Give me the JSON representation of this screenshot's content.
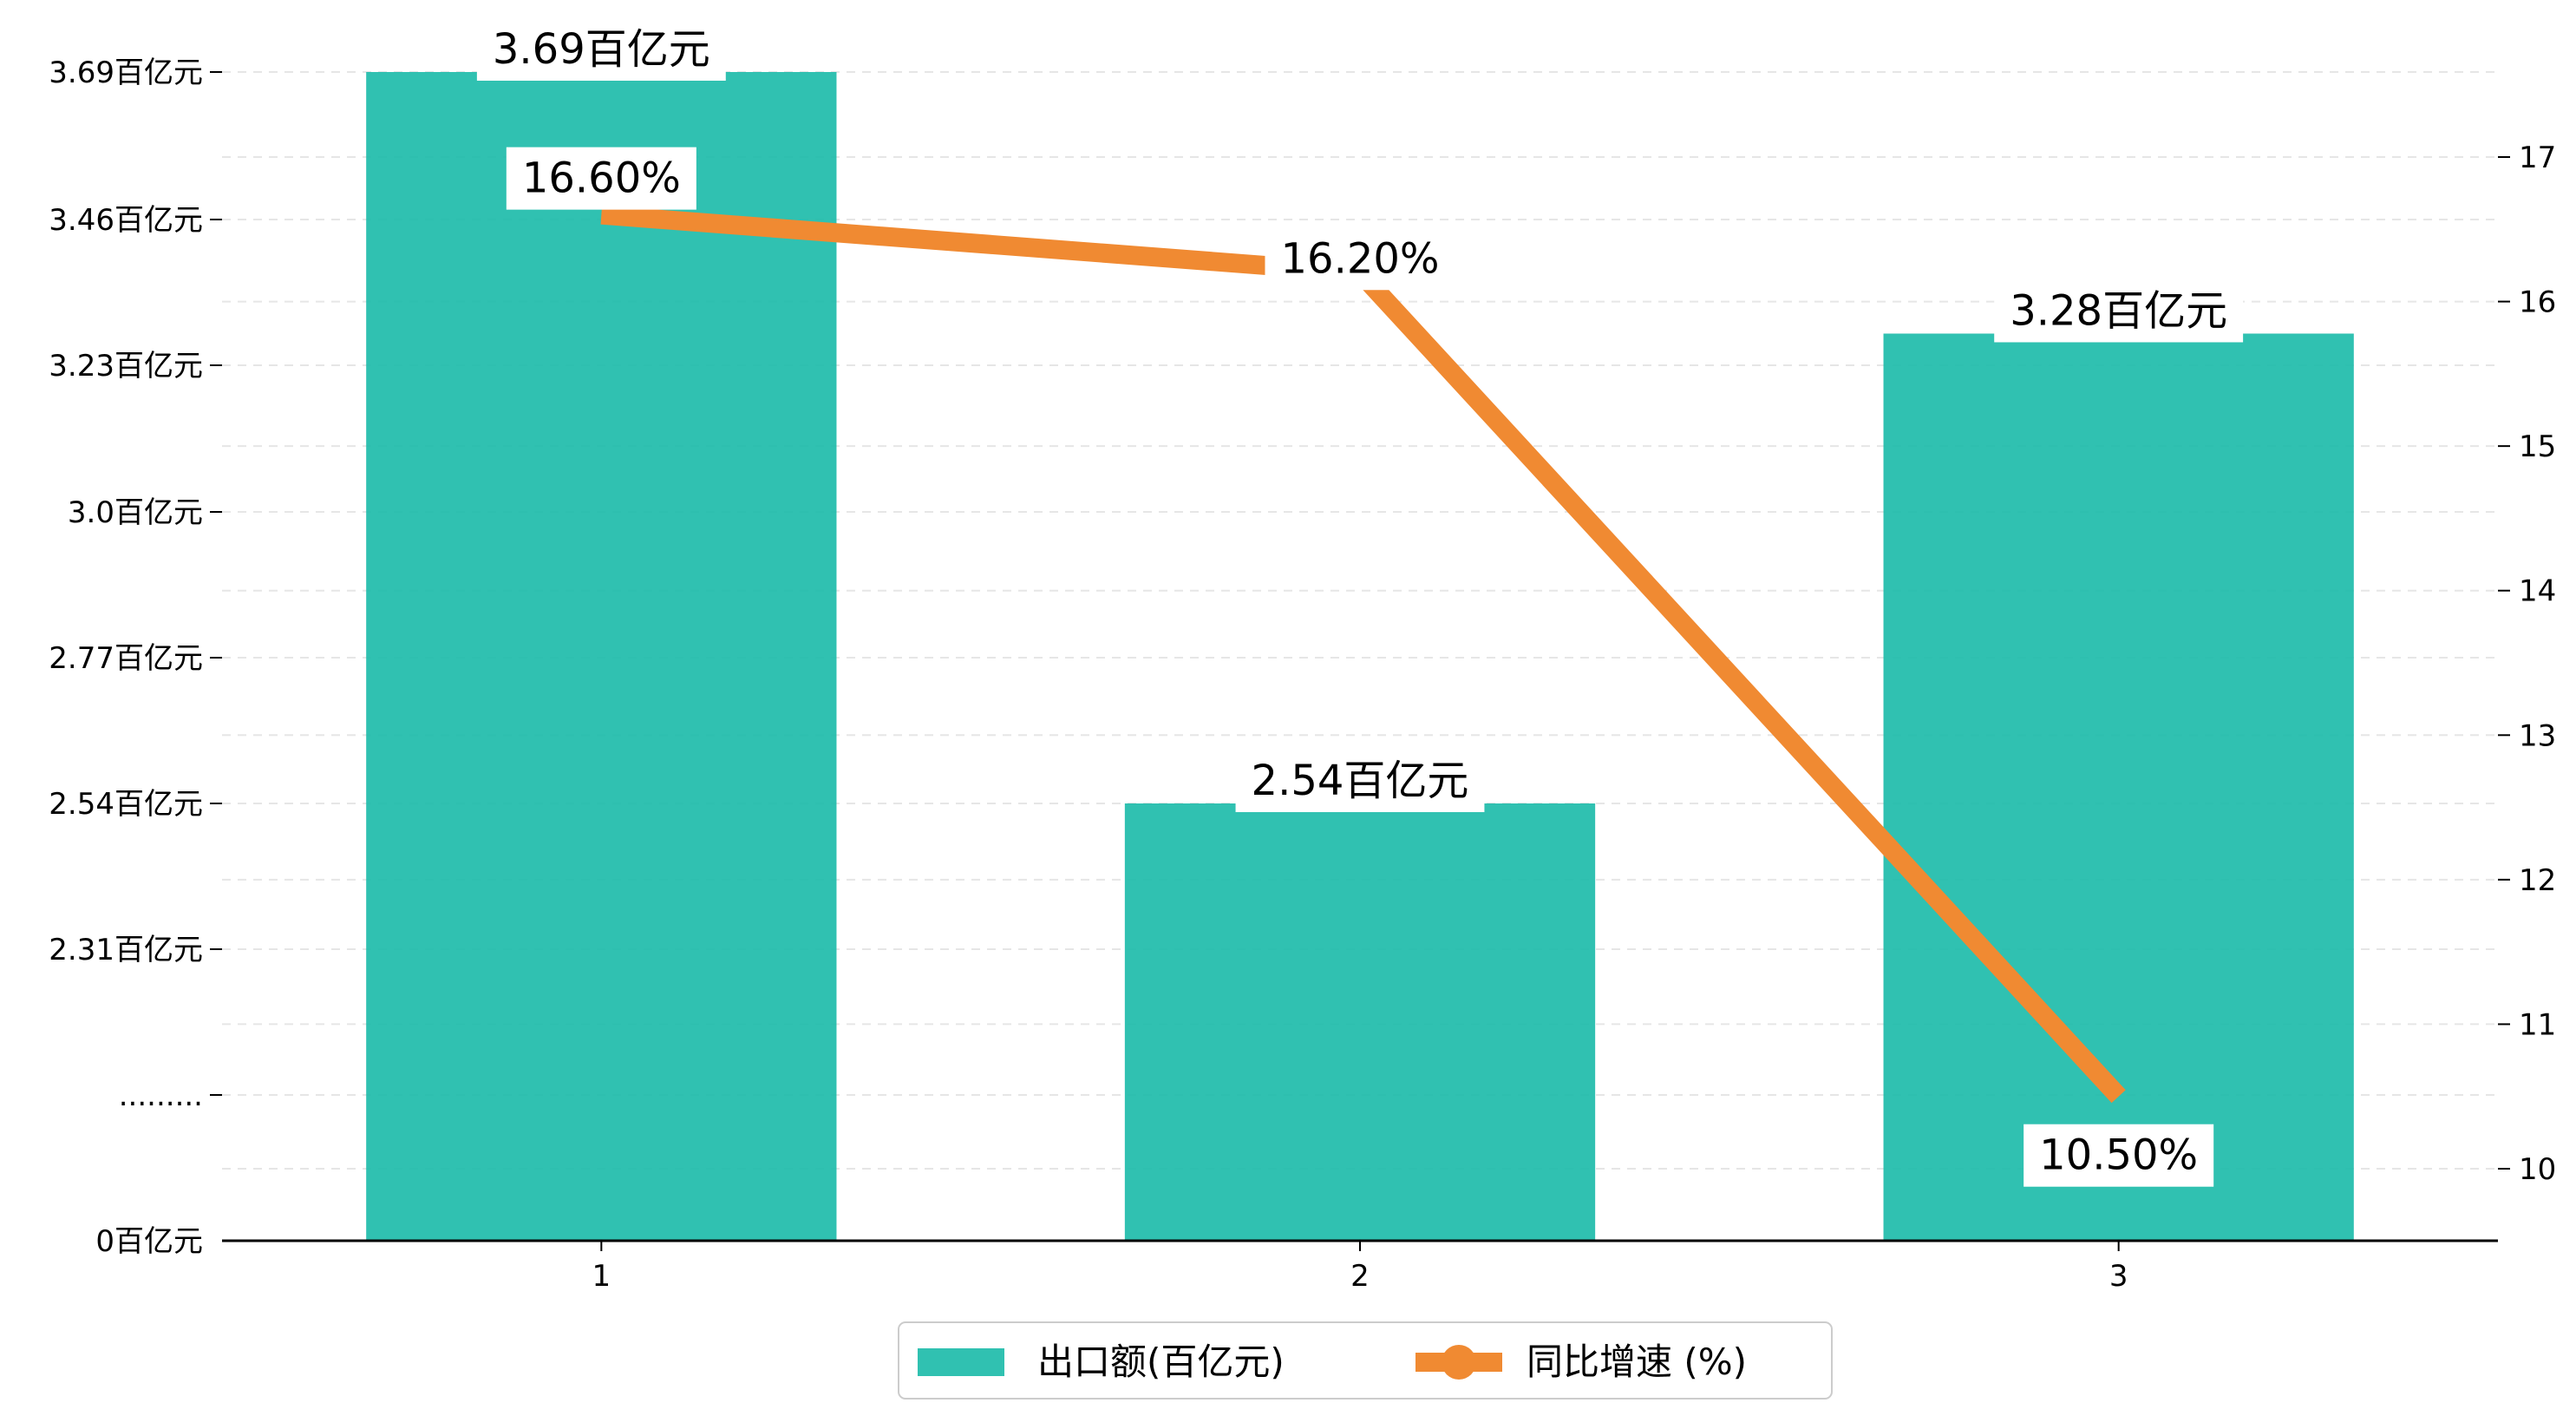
{
  "chart_data": {
    "type": "bar",
    "categories": [
      "1",
      "2",
      "3"
    ],
    "series": [
      {
        "name": "出口额(百亿元)",
        "type": "bar",
        "axis": "left",
        "color": "#1ABAA8",
        "values": [
          3.69,
          2.54,
          3.28
        ],
        "labels": [
          "3.69百亿元",
          "2.54百亿元",
          "3.28百亿元"
        ]
      },
      {
        "name": "同比增速 (%)",
        "type": "line",
        "axis": "right",
        "color": "#F08A32",
        "values": [
          16.6,
          16.2,
          10.5
        ],
        "labels": [
          "16.60%",
          "16.20%",
          "10.50%"
        ]
      }
    ],
    "left_axis": {
      "ticks": [
        {
          "value": 0,
          "label": "0百亿元"
        },
        {
          "value": 1.85,
          "label": "........."
        },
        {
          "value": 2.31,
          "label": "2.31百亿元"
        },
        {
          "value": 2.54,
          "label": "2.54百亿元"
        },
        {
          "value": 2.77,
          "label": "2.77百亿元"
        },
        {
          "value": 3.0,
          "label": "3.0百亿元"
        },
        {
          "value": 3.23,
          "label": "3.23百亿元"
        },
        {
          "value": 3.46,
          "label": "3.46百亿元"
        },
        {
          "value": 3.69,
          "label": "3.69百亿元"
        }
      ],
      "broken_axis": true
    },
    "right_axis": {
      "range": [
        9.5,
        17.7
      ],
      "ticks": [
        10,
        11,
        12,
        13,
        14,
        15,
        16,
        17
      ]
    },
    "grid": "horizontal dashed",
    "legend": {
      "position": "bottom-center"
    }
  }
}
